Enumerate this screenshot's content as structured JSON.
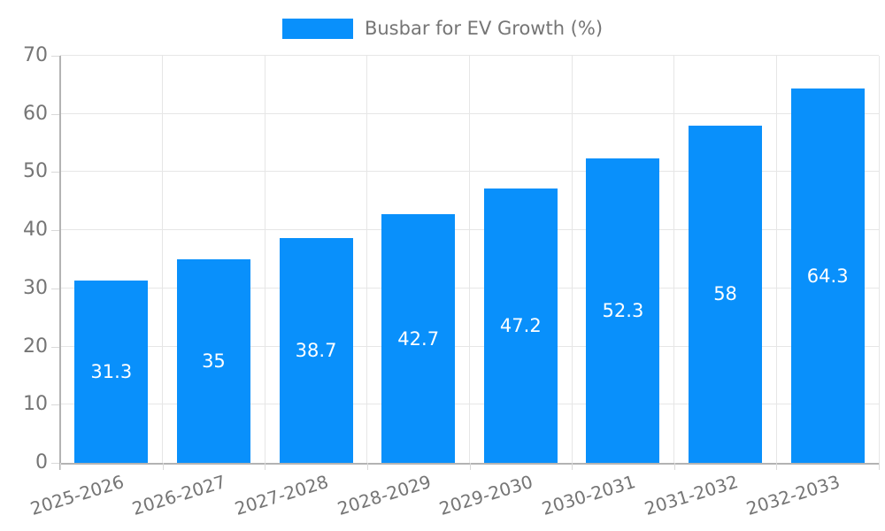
{
  "chart_data": {
    "type": "bar",
    "title": "Busbar for EV Growth (%)",
    "legend": "Busbar for EV Growth (%)",
    "legend_position": "top-center",
    "categories": [
      "2025-2026",
      "2026-2027",
      "2027-2028",
      "2028-2029",
      "2029-2030",
      "2030-2031",
      "2031-2032",
      "2032-2033"
    ],
    "values": [
      31.3,
      35,
      38.7,
      42.7,
      47.2,
      52.3,
      58,
      64.3
    ],
    "value_labels": [
      "31.3",
      "35",
      "38.7",
      "42.7",
      "47.2",
      "52.3",
      "58",
      "64.3"
    ],
    "xlabel": "",
    "ylabel": "",
    "ylim": [
      0,
      70
    ],
    "yticks": [
      0,
      10,
      20,
      30,
      40,
      50,
      60,
      70
    ],
    "grid": true,
    "colors": {
      "bar": "#0990fb",
      "bar_value_label": "#ffffff",
      "axis_text": "#757575",
      "grid_line": "#e6e6e6",
      "axis_line": "#b3b3b3",
      "tick_mark": "#d9d9d9",
      "background": "#ffffff"
    }
  }
}
